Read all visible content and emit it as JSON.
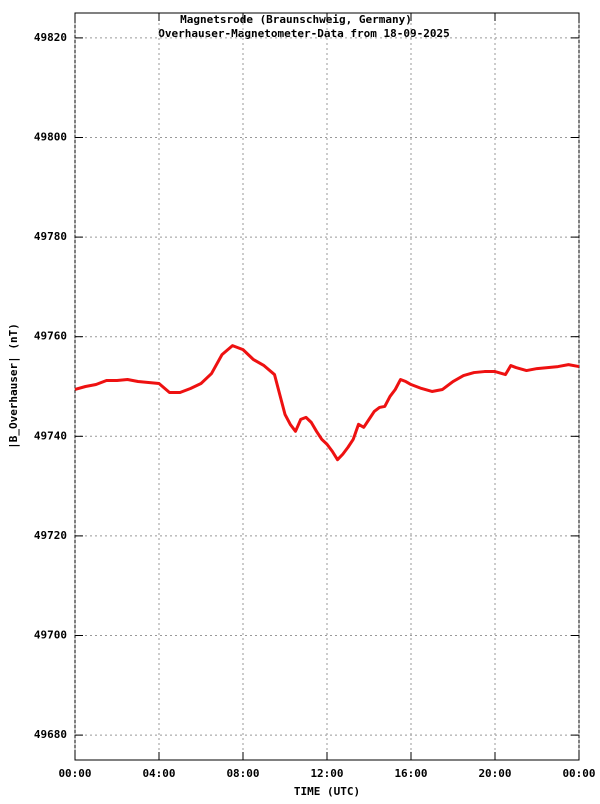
{
  "chart_data": {
    "type": "line",
    "title": "Magnetsrode (Braunschweig, Germany)",
    "subtitle": "Overhauser-Magnetometer-Data from 18-09-2025",
    "x_label": "TIME (UTC)",
    "y_label": "|B_Overhauser| (nT)",
    "x": [
      0,
      0.5,
      1,
      1.5,
      2,
      2.5,
      3,
      3.5,
      4,
      4.5,
      5,
      5.5,
      6,
      6.5,
      7,
      7.5,
      8,
      8.5,
      9,
      9.5,
      9.75,
      10,
      10.25,
      10.5,
      10.75,
      11,
      11.25,
      11.5,
      11.75,
      12,
      12.25,
      12.5,
      12.75,
      13,
      13.25,
      13.5,
      13.75,
      14,
      14.25,
      14.5,
      14.75,
      15,
      15.25,
      15.5,
      15.75,
      16,
      16.5,
      17,
      17.5,
      18,
      18.5,
      19,
      19.5,
      20,
      20.5,
      20.75,
      21,
      21.5,
      22,
      22.5,
      23,
      23.5,
      24
    ],
    "series": [
      {
        "name": "|B_Overhauser|",
        "color": "#ee1111",
        "values": [
          49749.4,
          49750,
          49750.4,
          49751.2,
          49751.2,
          49751.4,
          49751,
          49750.8,
          49750.6,
          49748.8,
          49748.8,
          49749.6,
          49750.6,
          49752.6,
          49756.4,
          49758.2,
          49757.4,
          49755.4,
          49754.2,
          49752.4,
          49748.4,
          49744.4,
          49742.4,
          49741,
          49743.4,
          49743.8,
          49742.8,
          49741,
          49739.4,
          49738.4,
          49737,
          49735.3,
          49736.4,
          49737.8,
          49739.4,
          49742.4,
          49741.8,
          49743.4,
          49745,
          49745.8,
          49746,
          49748,
          49749.4,
          49751.4,
          49751,
          49750.4,
          49749.6,
          49749,
          49749.4,
          49751,
          49752.2,
          49752.8,
          49753,
          49753,
          49752.4,
          49754.2,
          49753.8,
          49753.2,
          49753.6,
          49753.8,
          49754,
          49754.4,
          49754
        ]
      }
    ],
    "xlim": [
      0,
      24
    ],
    "xticks": [
      {
        "value": 0,
        "label": "00:00"
      },
      {
        "value": 4,
        "label": "04:00"
      },
      {
        "value": 8,
        "label": "08:00"
      },
      {
        "value": 12,
        "label": "12:00"
      },
      {
        "value": 16,
        "label": "16:00"
      },
      {
        "value": 20,
        "label": "20:00"
      },
      {
        "value": 24,
        "label": "00:00"
      }
    ],
    "ylim": [
      49675,
      49825
    ],
    "yticks": [
      49680,
      49700,
      49720,
      49740,
      49760,
      49780,
      49800,
      49820
    ],
    "grid": true
  }
}
